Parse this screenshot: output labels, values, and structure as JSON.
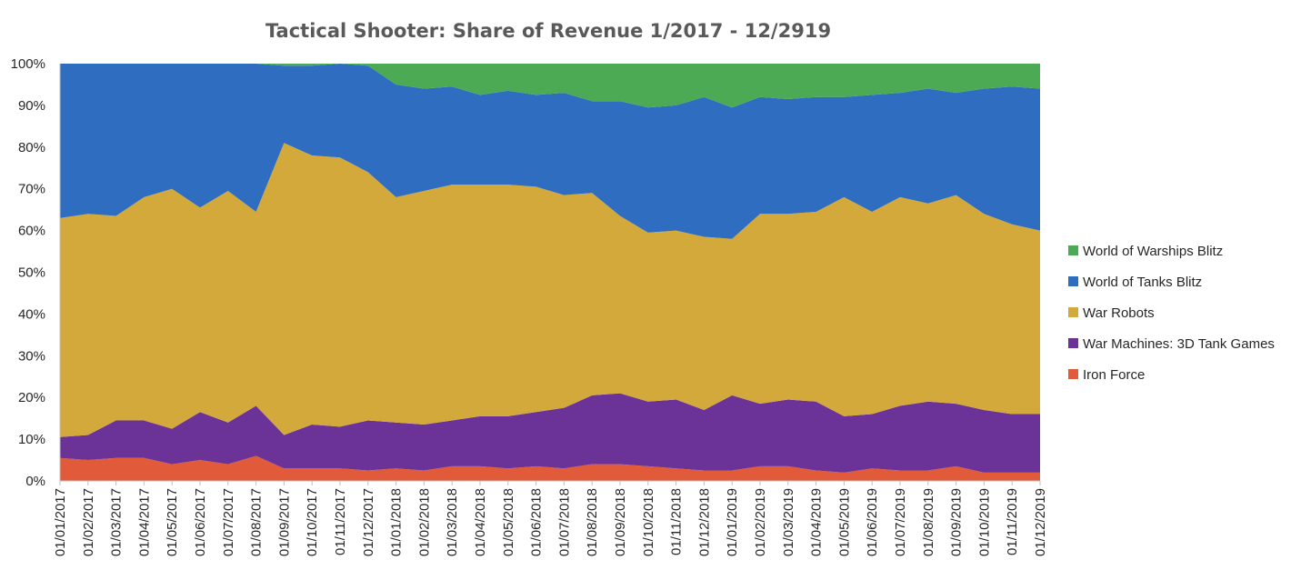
{
  "chart_data": {
    "type": "area",
    "stacked": "100%",
    "title": "Tactical Shooter: Share of Revenue 1/2017 - 12/2919",
    "xlabel": "",
    "ylabel": "",
    "ylim": [
      0,
      100
    ],
    "y_tick_labels": [
      "0%",
      "10%",
      "20%",
      "30%",
      "40%",
      "50%",
      "60%",
      "70%",
      "80%",
      "90%",
      "100%"
    ],
    "grid": false,
    "legend_position": "right",
    "categories": [
      "01/01/2017",
      "01/02/2017",
      "01/03/2017",
      "01/04/2017",
      "01/05/2017",
      "01/06/2017",
      "01/07/2017",
      "01/08/2017",
      "01/09/2017",
      "01/10/2017",
      "01/11/2017",
      "01/12/2017",
      "01/01/2018",
      "01/02/2018",
      "01/03/2018",
      "01/04/2018",
      "01/05/2018",
      "01/06/2018",
      "01/07/2018",
      "01/08/2018",
      "01/09/2018",
      "01/10/2018",
      "01/11/2018",
      "01/12/2018",
      "01/01/2019",
      "01/02/2019",
      "01/03/2019",
      "01/04/2019",
      "01/05/2019",
      "01/06/2019",
      "01/07/2019",
      "01/08/2019",
      "01/09/2019",
      "01/10/2019",
      "01/11/2019",
      "01/12/2019"
    ],
    "series": [
      {
        "name": "Iron Force",
        "color": "#E15B3A",
        "values": [
          5.5,
          5,
          5.5,
          5.5,
          4,
          5,
          4,
          6,
          3,
          3,
          3,
          2.5,
          3,
          2.5,
          3.5,
          3.5,
          3,
          3.5,
          3,
          4,
          4,
          3.5,
          3,
          2.5,
          2.5,
          3.5,
          3.5,
          2.5,
          2,
          3,
          2.5,
          2.5,
          3.5,
          2,
          2,
          2
        ]
      },
      {
        "name": "War Machines: 3D Tank Games",
        "color": "#6B3398",
        "values": [
          5,
          6,
          9,
          9,
          8.5,
          11.5,
          10,
          12,
          8,
          10.5,
          10,
          12,
          11,
          11,
          11,
          12,
          12.5,
          13,
          14.5,
          16.5,
          17,
          15.5,
          16.5,
          14.5,
          18,
          15,
          16,
          16.5,
          13.5,
          13,
          15.5,
          16.5,
          15,
          15,
          14,
          14
        ]
      },
      {
        "name": "War Robots",
        "color": "#D4A93B",
        "values": [
          52.5,
          53,
          49,
          53.5,
          57.5,
          49,
          55.5,
          46.5,
          70,
          64.5,
          64.5,
          59.5,
          54,
          56,
          56.5,
          55.5,
          55.5,
          54,
          51,
          48.5,
          42.5,
          40.5,
          40.5,
          41.5,
          37.5,
          45.5,
          44.5,
          45.5,
          52.5,
          48.5,
          50,
          47.5,
          50,
          47,
          45.5,
          44
        ]
      },
      {
        "name": "World of Tanks Blitz",
        "color": "#2E6DBF",
        "values": [
          37,
          36,
          36.5,
          32,
          30,
          34.5,
          30.5,
          35.5,
          18.5,
          21.5,
          22.5,
          25.5,
          27,
          24.5,
          23.5,
          21.5,
          22.5,
          22,
          24.5,
          22,
          27.5,
          30,
          30,
          33.5,
          31.5,
          28,
          27.5,
          27.5,
          24,
          28,
          25,
          27.5,
          24.5,
          30,
          33,
          34
        ]
      },
      {
        "name": "World of Warships Blitz",
        "color": "#4CAA55",
        "values": [
          0,
          0,
          0,
          0,
          0,
          0,
          0,
          0,
          0.5,
          0.5,
          0,
          0.5,
          5,
          6,
          5.5,
          7.5,
          6.5,
          7.5,
          7,
          9,
          9,
          10.5,
          10,
          8,
          10.5,
          8,
          8.5,
          8,
          8,
          7.5,
          7,
          6,
          7,
          6,
          5.5,
          6
        ]
      }
    ]
  }
}
